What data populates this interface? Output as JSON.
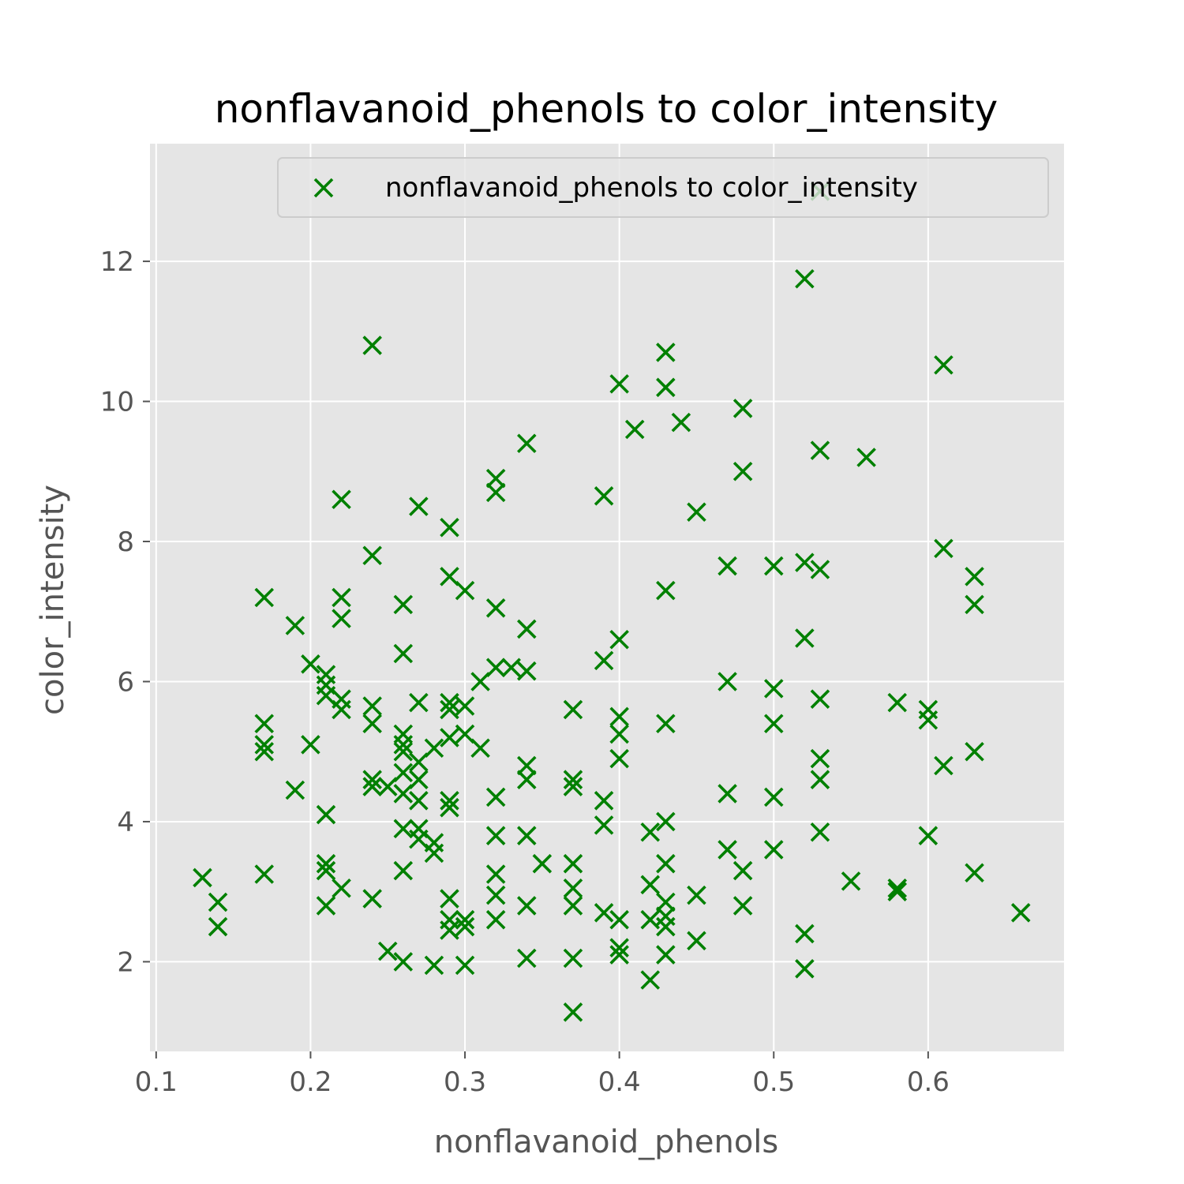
{
  "chart_data": {
    "type": "scatter",
    "title": "nonflavanoid_phenols to color_intensity",
    "xlabel": "nonflavanoid_phenols",
    "ylabel": "color_intensity",
    "xlim": [
      0.096,
      0.688
    ],
    "ylim": [
      0.72,
      13.68
    ],
    "xticks": [
      0.1,
      0.2,
      0.3,
      0.4,
      0.5,
      0.6
    ],
    "xtick_labels": [
      "0.1",
      "0.2",
      "0.3",
      "0.4",
      "0.5",
      "0.6"
    ],
    "yticks": [
      2,
      4,
      6,
      8,
      10,
      12
    ],
    "ytick_labels": [
      "2",
      "4",
      "6",
      "8",
      "10",
      "12"
    ],
    "grid": true,
    "legend_position": "top-right",
    "marker": "x",
    "colors": {
      "points": "#008000",
      "plot_bg": "#e5e5e5",
      "grid": "#ffffff",
      "legend_border": "#cccccc"
    },
    "series": [
      {
        "name": "nonflavanoid_phenols to color_intensity",
        "points": [
          [
            0.13,
            3.2
          ],
          [
            0.14,
            2.85
          ],
          [
            0.14,
            2.5
          ],
          [
            0.17,
            7.2
          ],
          [
            0.17,
            5.4
          ],
          [
            0.17,
            5.1
          ],
          [
            0.17,
            5.0
          ],
          [
            0.17,
            3.25
          ],
          [
            0.19,
            6.8
          ],
          [
            0.19,
            4.45
          ],
          [
            0.2,
            6.25
          ],
          [
            0.2,
            5.1
          ],
          [
            0.21,
            6.1
          ],
          [
            0.21,
            5.95
          ],
          [
            0.21,
            5.8
          ],
          [
            0.21,
            4.1
          ],
          [
            0.21,
            3.4
          ],
          [
            0.21,
            3.3
          ],
          [
            0.21,
            2.8
          ],
          [
            0.22,
            8.6
          ],
          [
            0.22,
            7.2
          ],
          [
            0.22,
            6.9
          ],
          [
            0.22,
            5.75
          ],
          [
            0.22,
            5.6
          ],
          [
            0.22,
            3.05
          ],
          [
            0.24,
            10.8
          ],
          [
            0.24,
            7.8
          ],
          [
            0.24,
            5.65
          ],
          [
            0.24,
            5.4
          ],
          [
            0.24,
            4.6
          ],
          [
            0.24,
            4.5
          ],
          [
            0.24,
            2.9
          ],
          [
            0.25,
            4.5
          ],
          [
            0.25,
            2.15
          ],
          [
            0.26,
            7.1
          ],
          [
            0.26,
            6.4
          ],
          [
            0.26,
            5.25
          ],
          [
            0.26,
            5.1
          ],
          [
            0.26,
            5.0
          ],
          [
            0.26,
            4.7
          ],
          [
            0.26,
            4.4
          ],
          [
            0.26,
            3.9
          ],
          [
            0.26,
            3.3
          ],
          [
            0.26,
            2.0
          ],
          [
            0.27,
            8.5
          ],
          [
            0.27,
            5.7
          ],
          [
            0.27,
            4.85
          ],
          [
            0.27,
            4.6
          ],
          [
            0.27,
            4.3
          ],
          [
            0.27,
            3.9
          ],
          [
            0.27,
            3.75
          ],
          [
            0.28,
            5.05
          ],
          [
            0.28,
            3.7
          ],
          [
            0.28,
            3.55
          ],
          [
            0.28,
            1.95
          ],
          [
            0.29,
            8.2
          ],
          [
            0.29,
            7.5
          ],
          [
            0.29,
            5.7
          ],
          [
            0.29,
            5.6
          ],
          [
            0.29,
            5.2
          ],
          [
            0.29,
            4.3
          ],
          [
            0.29,
            4.2
          ],
          [
            0.29,
            2.9
          ],
          [
            0.29,
            2.6
          ],
          [
            0.29,
            2.45
          ],
          [
            0.3,
            7.3
          ],
          [
            0.3,
            5.65
          ],
          [
            0.3,
            5.25
          ],
          [
            0.3,
            2.6
          ],
          [
            0.3,
            2.5
          ],
          [
            0.3,
            1.95
          ],
          [
            0.31,
            6.0
          ],
          [
            0.31,
            5.05
          ],
          [
            0.32,
            8.9
          ],
          [
            0.32,
            8.7
          ],
          [
            0.32,
            7.05
          ],
          [
            0.32,
            6.2
          ],
          [
            0.32,
            4.35
          ],
          [
            0.32,
            3.8
          ],
          [
            0.32,
            3.25
          ],
          [
            0.32,
            2.95
          ],
          [
            0.32,
            2.6
          ],
          [
            0.33,
            6.2
          ],
          [
            0.34,
            9.4
          ],
          [
            0.34,
            6.75
          ],
          [
            0.34,
            6.15
          ],
          [
            0.34,
            4.8
          ],
          [
            0.34,
            4.6
          ],
          [
            0.34,
            3.8
          ],
          [
            0.34,
            2.8
          ],
          [
            0.34,
            2.05
          ],
          [
            0.35,
            3.4
          ],
          [
            0.37,
            5.6
          ],
          [
            0.37,
            4.6
          ],
          [
            0.37,
            4.5
          ],
          [
            0.37,
            3.4
          ],
          [
            0.37,
            3.05
          ],
          [
            0.37,
            2.8
          ],
          [
            0.37,
            2.05
          ],
          [
            0.37,
            1.28
          ],
          [
            0.39,
            8.65
          ],
          [
            0.39,
            6.3
          ],
          [
            0.39,
            4.3
          ],
          [
            0.39,
            3.95
          ],
          [
            0.39,
            2.7
          ],
          [
            0.4,
            10.25
          ],
          [
            0.4,
            6.6
          ],
          [
            0.4,
            5.5
          ],
          [
            0.4,
            5.25
          ],
          [
            0.4,
            4.9
          ],
          [
            0.4,
            2.6
          ],
          [
            0.4,
            2.2
          ],
          [
            0.4,
            2.1
          ],
          [
            0.41,
            9.6
          ],
          [
            0.42,
            3.85
          ],
          [
            0.42,
            3.1
          ],
          [
            0.42,
            2.6
          ],
          [
            0.42,
            1.74
          ],
          [
            0.43,
            10.7
          ],
          [
            0.43,
            10.2
          ],
          [
            0.43,
            7.3
          ],
          [
            0.43,
            5.4
          ],
          [
            0.43,
            4.0
          ],
          [
            0.43,
            3.4
          ],
          [
            0.43,
            2.85
          ],
          [
            0.43,
            2.65
          ],
          [
            0.43,
            2.5
          ],
          [
            0.43,
            2.1
          ],
          [
            0.44,
            9.7
          ],
          [
            0.45,
            8.42
          ],
          [
            0.45,
            2.95
          ],
          [
            0.45,
            2.3
          ],
          [
            0.47,
            7.65
          ],
          [
            0.47,
            6.0
          ],
          [
            0.47,
            4.4
          ],
          [
            0.47,
            3.6
          ],
          [
            0.48,
            9.9
          ],
          [
            0.48,
            9.0
          ],
          [
            0.48,
            3.3
          ],
          [
            0.48,
            2.8
          ],
          [
            0.5,
            7.65
          ],
          [
            0.5,
            5.9
          ],
          [
            0.5,
            5.4
          ],
          [
            0.5,
            4.35
          ],
          [
            0.5,
            3.6
          ],
          [
            0.52,
            11.75
          ],
          [
            0.52,
            7.7
          ],
          [
            0.52,
            6.62
          ],
          [
            0.52,
            2.4
          ],
          [
            0.52,
            1.9
          ],
          [
            0.53,
            13.0
          ],
          [
            0.53,
            9.3
          ],
          [
            0.53,
            7.6
          ],
          [
            0.53,
            5.75
          ],
          [
            0.53,
            4.9
          ],
          [
            0.53,
            4.6
          ],
          [
            0.53,
            3.85
          ],
          [
            0.55,
            3.15
          ],
          [
            0.56,
            9.2
          ],
          [
            0.58,
            5.7
          ],
          [
            0.58,
            3.05
          ],
          [
            0.58,
            3.0
          ],
          [
            0.6,
            5.6
          ],
          [
            0.6,
            5.45
          ],
          [
            0.6,
            3.8
          ],
          [
            0.61,
            10.52
          ],
          [
            0.61,
            7.9
          ],
          [
            0.61,
            4.8
          ],
          [
            0.63,
            7.5
          ],
          [
            0.63,
            7.1
          ],
          [
            0.63,
            5.0
          ],
          [
            0.63,
            3.27
          ],
          [
            0.66,
            2.7
          ]
        ]
      }
    ]
  }
}
